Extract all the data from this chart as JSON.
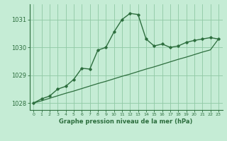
{
  "x": [
    0,
    1,
    2,
    3,
    4,
    5,
    6,
    7,
    8,
    9,
    10,
    11,
    12,
    13,
    14,
    15,
    16,
    17,
    18,
    19,
    20,
    21,
    22,
    23
  ],
  "line1": [
    1028.0,
    1028.15,
    1028.25,
    1028.5,
    1028.6,
    1028.85,
    1029.25,
    1029.22,
    1029.9,
    1030.0,
    1030.55,
    1031.0,
    1031.22,
    1031.18,
    1030.3,
    1030.05,
    1030.12,
    1030.0,
    1030.05,
    1030.18,
    1030.25,
    1030.3,
    1030.35,
    1030.3
  ],
  "line2": [
    1028.0,
    1028.08,
    1028.17,
    1028.26,
    1028.35,
    1028.43,
    1028.52,
    1028.61,
    1028.7,
    1028.78,
    1028.87,
    1028.96,
    1029.04,
    1029.13,
    1029.22,
    1029.3,
    1029.39,
    1029.48,
    1029.57,
    1029.65,
    1029.74,
    1029.83,
    1029.91,
    1030.3
  ],
  "bg_color": "#c5ecd5",
  "grid_color": "#90c9a5",
  "line_color": "#2d6e3e",
  "title": "Graphe pression niveau de la mer (hPa)",
  "ylim": [
    1027.75,
    1031.55
  ],
  "yticks": [
    1028,
    1029,
    1030,
    1031
  ],
  "xticks": [
    0,
    1,
    2,
    3,
    4,
    5,
    6,
    7,
    8,
    9,
    10,
    11,
    12,
    13,
    14,
    15,
    16,
    17,
    18,
    19,
    20,
    21,
    22,
    23
  ]
}
